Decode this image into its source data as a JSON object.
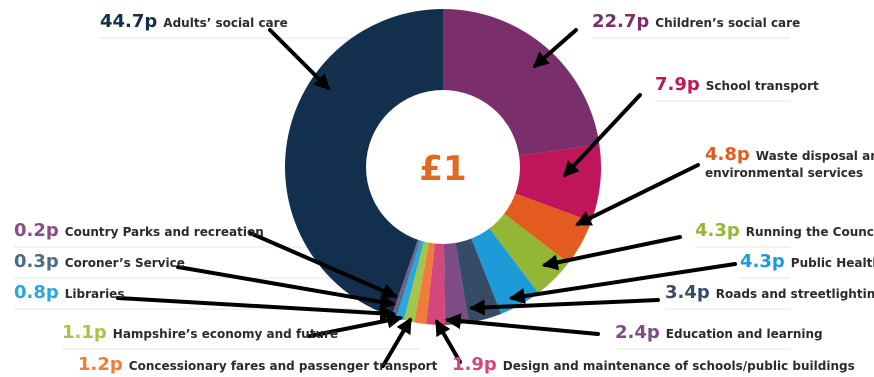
{
  "chart_data": {
    "type": "pie",
    "center_label": "£1",
    "center_color": "#e06a22",
    "slices": [
      {
        "amount": "22.7p",
        "value": 22.7,
        "label": "Children’s social care",
        "color": "#7a2f6c"
      },
      {
        "amount": "7.9p",
        "value": 7.9,
        "label": "School transport",
        "color": "#c0155a"
      },
      {
        "amount": "4.8p",
        "value": 4.8,
        "label": "Waste disposal and",
        "label2": "environmental services",
        "color": "#e35b1e"
      },
      {
        "amount": "4.3p",
        "value": 4.3,
        "label": "Running the Council",
        "color": "#93b634"
      },
      {
        "amount": "4.3p",
        "value": 4.3,
        "label": "Public Health",
        "color": "#1d9bd8"
      },
      {
        "amount": "3.4p",
        "value": 3.4,
        "label": "Roads and streetlighting",
        "color": "#364c66"
      },
      {
        "amount": "2.4p",
        "value": 2.4,
        "label": "Education and learning",
        "color": "#7d4b86"
      },
      {
        "amount": "1.9p",
        "value": 1.9,
        "label": "Design and maintenance of schools/public buildings",
        "color": "#d4477c"
      },
      {
        "amount": "1.2p",
        "value": 1.2,
        "label": "Concessionary fares and passenger transport",
        "color": "#f07b3c"
      },
      {
        "amount": "1.1p",
        "value": 1.1,
        "label": "Hampshire’s economy and future",
        "color": "#a3c64a"
      },
      {
        "amount": "0.8p",
        "value": 0.8,
        "label": "Libraries",
        "color": "#2aa6dc"
      },
      {
        "amount": "0.3p",
        "value": 0.3,
        "label": "Coroner’s Service",
        "color": "#4a6d8c"
      },
      {
        "amount": "0.2p",
        "value": 0.2,
        "label": "Country Parks and recreation",
        "color": "#8a4b8c"
      },
      {
        "amount": "44.7p",
        "value": 44.7,
        "label": "Adults’ social care",
        "color": "#12304d"
      }
    ]
  }
}
